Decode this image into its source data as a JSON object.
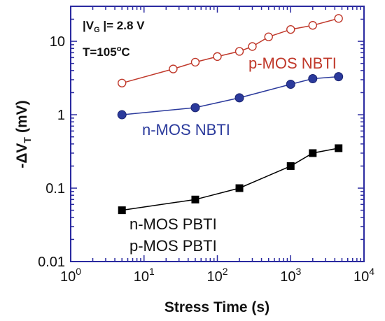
{
  "chart_data": {
    "type": "line",
    "title": "",
    "xlabel": "Stress Time (s)",
    "ylabel": "-ΔV",
    "ylabel_sub": "T",
    "ylabel_unit": "(mV)",
    "x_scale": "log",
    "y_scale": "log",
    "xlim": [
      1,
      10000
    ],
    "ylim": [
      0.01,
      30
    ],
    "grid": false,
    "x_ticks": [
      {
        "value": 1,
        "base": "10",
        "exp": "0"
      },
      {
        "value": 10,
        "base": "10",
        "exp": "1"
      },
      {
        "value": 100,
        "base": "10",
        "exp": "2"
      },
      {
        "value": 1000,
        "base": "10",
        "exp": "3"
      },
      {
        "value": 10000,
        "base": "10",
        "exp": "4"
      }
    ],
    "y_ticks": [
      {
        "value": 0.01,
        "label": "0.01"
      },
      {
        "value": 0.1,
        "label": "0.1"
      },
      {
        "value": 1,
        "label": "1"
      },
      {
        "value": 10,
        "label": "10"
      }
    ],
    "series": [
      {
        "name": "p-MOS NBTI",
        "color": "#c0392b",
        "marker": "open-circle",
        "x": [
          5,
          25,
          50,
          100,
          200,
          300,
          500,
          1000,
          2000,
          4500
        ],
        "y": [
          2.7,
          4.2,
          5.2,
          6.2,
          7.3,
          8.5,
          11.5,
          14.5,
          16.5,
          20.5
        ]
      },
      {
        "name": "n-MOS NBTI",
        "color": "#2b3a9c",
        "marker": "filled-circle",
        "x": [
          5,
          50,
          200,
          1000,
          2000,
          4500
        ],
        "y": [
          1.0,
          1.25,
          1.7,
          2.6,
          3.1,
          3.3
        ]
      },
      {
        "name": "n-MOS PBTI / p-MOS PBTI",
        "color": "#000000",
        "marker": "filled-square",
        "x": [
          5,
          50,
          200,
          1000,
          2000,
          4500
        ],
        "y": [
          0.05,
          0.07,
          0.1,
          0.2,
          0.3,
          0.35
        ]
      }
    ],
    "annotations": {
      "vg_pre": "|V",
      "vg_sub": "G",
      "vg_post": " |= 2.8 V",
      "temp_pre": "T=105",
      "temp_sup": "o",
      "temp_post": "C",
      "pmos_nbti": "p-MOS NBTI",
      "nmos_nbti": "n-MOS NBTI",
      "nmos_pbti": "n-MOS PBTI",
      "pmos_pbti": "p-MOS PBTI"
    },
    "colors": {
      "frame": "#2a2aa0",
      "pmos_nbti": "#c0392b",
      "nmos_nbti": "#2b3a9c",
      "pbti": "#000000"
    }
  }
}
